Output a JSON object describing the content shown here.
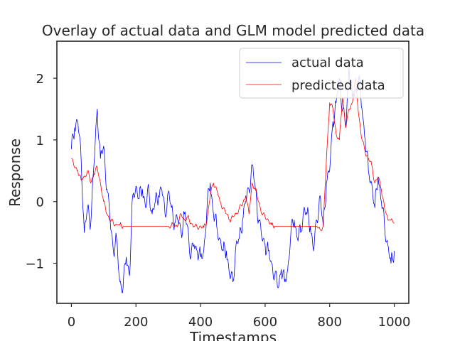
{
  "chart_data": {
    "type": "line",
    "title": "Overlay of actual data and GLM model predicted data",
    "xlabel": "Timestamps",
    "ylabel": "Response",
    "xlim": [
      -45,
      1045
    ],
    "ylim": [
      -1.65,
      2.6
    ],
    "xticks": [
      0,
      200,
      400,
      600,
      800,
      1000
    ],
    "yticks": [
      -1,
      0,
      1,
      2
    ],
    "xtick_labels": [
      "0",
      "200",
      "400",
      "600",
      "800",
      "1000"
    ],
    "ytick_labels": [
      "−1",
      "0",
      "1",
      "2"
    ],
    "legend_position": "top-right",
    "grid": false,
    "x_step": 10,
    "series": [
      {
        "name": "actual data",
        "color": "#0000ff",
        "values": [
          0.85,
          1.2,
          1.3,
          0.7,
          -0.5,
          -0.1,
          -0.35,
          0.6,
          1.5,
          0.7,
          0.9,
          0.2,
          -0.3,
          -0.8,
          -0.6,
          -1.3,
          -1.4,
          -0.9,
          -1.2,
          0.1,
          0.25,
          0.05,
          0.2,
          -0.1,
          0.2,
          -0.2,
          0.0,
          0.1,
          0.2,
          -0.2,
          0.15,
          -0.1,
          -0.35,
          -0.3,
          -0.5,
          -0.2,
          -0.4,
          -0.9,
          -0.7,
          -0.8,
          -0.9,
          -0.8,
          -0.1,
          0.3,
          -0.2,
          -0.4,
          -0.6,
          -0.8,
          -0.8,
          -1.2,
          -1.3,
          -0.7,
          -0.6,
          -0.3,
          0.0,
          0.2,
          0.6,
          0.2,
          -0.3,
          -0.6,
          -0.7,
          -0.8,
          -1.0,
          -1.2,
          -1.4,
          -1.1,
          -1.3,
          -1.1,
          -0.5,
          -0.3,
          -0.6,
          -0.5,
          -0.1,
          -0.2,
          -0.4,
          -0.8,
          -0.3,
          0.1,
          -0.4,
          0.3,
          0.5,
          1.3,
          1.6,
          2.0,
          1.5,
          1.2,
          2.2,
          1.7,
          1.8,
          2.0,
          1.5,
          1.0,
          0.5,
          0.3,
          -0.1,
          0.4,
          0.0,
          -0.4,
          -0.7,
          -1.0,
          -0.8
        ]
      },
      {
        "name": "predicted data",
        "color": "#ff0000",
        "values": [
          0.7,
          0.55,
          0.5,
          0.35,
          0.4,
          0.5,
          0.3,
          0.45,
          0.55,
          0.3,
          0.0,
          -0.2,
          -0.3,
          -0.35,
          -0.38,
          -0.38,
          -0.4,
          -0.4,
          -0.4,
          -0.4,
          -0.4,
          -0.4,
          -0.4,
          -0.4,
          -0.4,
          -0.4,
          -0.4,
          -0.4,
          -0.4,
          -0.4,
          -0.4,
          -0.38,
          -0.4,
          -0.38,
          -0.2,
          -0.3,
          -0.25,
          -0.35,
          -0.4,
          -0.42,
          -0.4,
          -0.42,
          -0.3,
          0.1,
          0.3,
          0.2,
          0.0,
          -0.1,
          -0.2,
          -0.3,
          -0.25,
          -0.2,
          -0.1,
          -0.05,
          0.1,
          -0.2,
          0.3,
          0.2,
          0.0,
          -0.2,
          -0.25,
          -0.3,
          -0.38,
          -0.4,
          -0.4,
          -0.4,
          -0.4,
          -0.4,
          -0.4,
          -0.4,
          -0.4,
          -0.4,
          -0.4,
          -0.4,
          -0.4,
          -0.4,
          -0.4,
          -0.45,
          -0.4,
          0.7,
          1.6,
          1.5,
          1.1,
          1.0,
          1.7,
          1.2,
          1.5,
          1.6,
          2.0,
          1.4,
          1.0,
          0.8,
          0.7,
          0.6,
          0.3,
          0.4,
          0.2,
          -0.1,
          -0.3,
          -0.3,
          -0.35
        ]
      }
    ]
  }
}
